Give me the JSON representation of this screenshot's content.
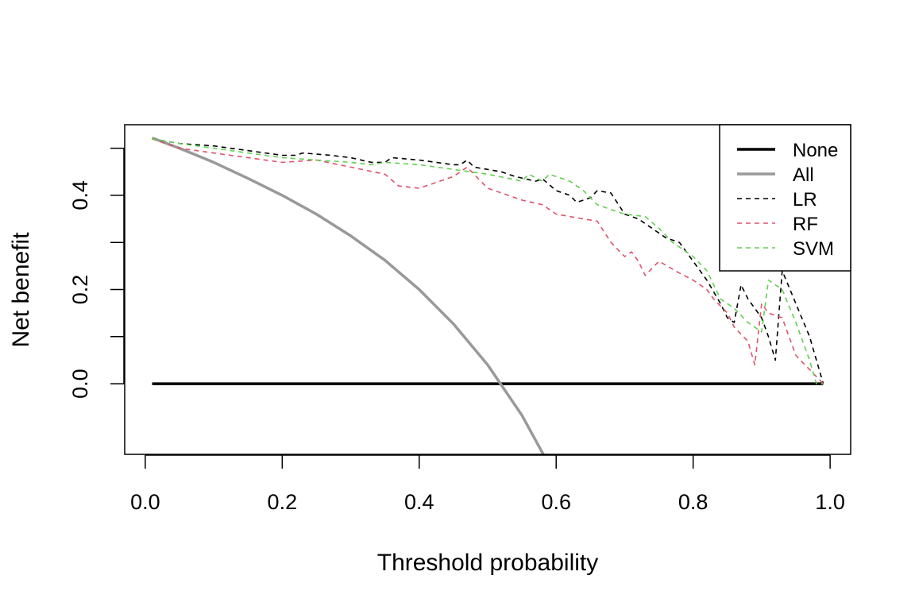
{
  "chart_data": {
    "type": "line",
    "title": "",
    "xlabel": "Threshold probability",
    "ylabel": "Net benefit",
    "xlim": [
      -0.03,
      1.03
    ],
    "ylim": [
      -0.15,
      0.55
    ],
    "x_ticks": [
      0.0,
      0.2,
      0.4,
      0.6,
      0.8,
      1.0
    ],
    "x_tick_labels": [
      "0.0",
      "0.2",
      "0.4",
      "0.6",
      "0.8",
      "1.0"
    ],
    "y_ticks": [
      0.0,
      0.1,
      0.2,
      0.3,
      0.4,
      0.5
    ],
    "y_tick_labels": [
      "0.0",
      "",
      "0.2",
      "",
      "0.4",
      ""
    ],
    "grid": false,
    "legend_position": "top-right",
    "series": [
      {
        "name": "None",
        "color": "#000000",
        "style": "solid",
        "points": [
          [
            0.01,
            0.0
          ],
          [
            0.99,
            0.0
          ]
        ]
      },
      {
        "name": "All",
        "color": "#999999",
        "style": "solid",
        "points": [
          [
            0.01,
            0.522
          ],
          [
            0.05,
            0.5
          ],
          [
            0.1,
            0.47
          ],
          [
            0.15,
            0.436
          ],
          [
            0.2,
            0.4
          ],
          [
            0.25,
            0.36
          ],
          [
            0.3,
            0.314
          ],
          [
            0.35,
            0.262
          ],
          [
            0.4,
            0.2
          ],
          [
            0.45,
            0.127
          ],
          [
            0.5,
            0.04
          ],
          [
            0.55,
            -0.067
          ],
          [
            0.6,
            -0.2
          ],
          [
            0.605,
            -0.215
          ]
        ]
      },
      {
        "name": "LR",
        "color": "#000000",
        "style": "dashed",
        "points": [
          [
            0.01,
            0.52
          ],
          [
            0.05,
            0.51
          ],
          [
            0.1,
            0.505
          ],
          [
            0.15,
            0.495
          ],
          [
            0.2,
            0.485
          ],
          [
            0.22,
            0.485
          ],
          [
            0.23,
            0.49
          ],
          [
            0.27,
            0.485
          ],
          [
            0.3,
            0.48
          ],
          [
            0.33,
            0.47
          ],
          [
            0.35,
            0.47
          ],
          [
            0.36,
            0.48
          ],
          [
            0.4,
            0.475
          ],
          [
            0.45,
            0.465
          ],
          [
            0.46,
            0.465
          ],
          [
            0.47,
            0.475
          ],
          [
            0.48,
            0.46
          ],
          [
            0.52,
            0.45
          ],
          [
            0.54,
            0.44
          ],
          [
            0.57,
            0.43
          ],
          [
            0.58,
            0.435
          ],
          [
            0.6,
            0.41
          ],
          [
            0.62,
            0.4
          ],
          [
            0.63,
            0.385
          ],
          [
            0.65,
            0.395
          ],
          [
            0.66,
            0.41
          ],
          [
            0.68,
            0.405
          ],
          [
            0.7,
            0.36
          ],
          [
            0.72,
            0.35
          ],
          [
            0.74,
            0.33
          ],
          [
            0.76,
            0.31
          ],
          [
            0.78,
            0.3
          ],
          [
            0.8,
            0.26
          ],
          [
            0.82,
            0.22
          ],
          [
            0.84,
            0.17
          ],
          [
            0.85,
            0.14
          ],
          [
            0.86,
            0.13
          ],
          [
            0.87,
            0.21
          ],
          [
            0.88,
            0.18
          ],
          [
            0.9,
            0.14
          ],
          [
            0.91,
            0.1
          ],
          [
            0.92,
            0.05
          ],
          [
            0.93,
            0.24
          ],
          [
            0.95,
            0.17
          ],
          [
            0.97,
            0.1
          ],
          [
            0.99,
            0.0
          ]
        ]
      },
      {
        "name": "RF",
        "color": "#DF536B",
        "style": "dashed",
        "points": [
          [
            0.01,
            0.52
          ],
          [
            0.05,
            0.5
          ],
          [
            0.1,
            0.49
          ],
          [
            0.15,
            0.48
          ],
          [
            0.2,
            0.47
          ],
          [
            0.25,
            0.475
          ],
          [
            0.3,
            0.46
          ],
          [
            0.35,
            0.445
          ],
          [
            0.37,
            0.42
          ],
          [
            0.4,
            0.415
          ],
          [
            0.45,
            0.44
          ],
          [
            0.46,
            0.45
          ],
          [
            0.47,
            0.46
          ],
          [
            0.5,
            0.415
          ],
          [
            0.53,
            0.4
          ],
          [
            0.55,
            0.39
          ],
          [
            0.58,
            0.38
          ],
          [
            0.6,
            0.36
          ],
          [
            0.64,
            0.35
          ],
          [
            0.66,
            0.345
          ],
          [
            0.68,
            0.3
          ],
          [
            0.7,
            0.27
          ],
          [
            0.71,
            0.28
          ],
          [
            0.72,
            0.26
          ],
          [
            0.73,
            0.23
          ],
          [
            0.75,
            0.26
          ],
          [
            0.78,
            0.235
          ],
          [
            0.8,
            0.22
          ],
          [
            0.82,
            0.2
          ],
          [
            0.83,
            0.18
          ],
          [
            0.85,
            0.15
          ],
          [
            0.86,
            0.12
          ],
          [
            0.88,
            0.09
          ],
          [
            0.89,
            0.04
          ],
          [
            0.9,
            0.17
          ],
          [
            0.91,
            0.15
          ],
          [
            0.93,
            0.14
          ],
          [
            0.95,
            0.06
          ],
          [
            0.97,
            0.03
          ],
          [
            0.99,
            0.0
          ]
        ]
      },
      {
        "name": "SVM",
        "color": "#61D04F",
        "style": "dashed",
        "points": [
          [
            0.01,
            0.52
          ],
          [
            0.05,
            0.51
          ],
          [
            0.1,
            0.5
          ],
          [
            0.15,
            0.49
          ],
          [
            0.2,
            0.48
          ],
          [
            0.25,
            0.475
          ],
          [
            0.3,
            0.47
          ],
          [
            0.33,
            0.465
          ],
          [
            0.35,
            0.47
          ],
          [
            0.4,
            0.465
          ],
          [
            0.45,
            0.455
          ],
          [
            0.5,
            0.445
          ],
          [
            0.55,
            0.43
          ],
          [
            0.56,
            0.445
          ],
          [
            0.58,
            0.43
          ],
          [
            0.59,
            0.445
          ],
          [
            0.6,
            0.44
          ],
          [
            0.62,
            0.43
          ],
          [
            0.64,
            0.41
          ],
          [
            0.66,
            0.38
          ],
          [
            0.68,
            0.37
          ],
          [
            0.7,
            0.36
          ],
          [
            0.73,
            0.355
          ],
          [
            0.75,
            0.33
          ],
          [
            0.77,
            0.3
          ],
          [
            0.8,
            0.27
          ],
          [
            0.82,
            0.24
          ],
          [
            0.84,
            0.18
          ],
          [
            0.86,
            0.16
          ],
          [
            0.88,
            0.13
          ],
          [
            0.9,
            0.11
          ],
          [
            0.91,
            0.22
          ],
          [
            0.93,
            0.2
          ],
          [
            0.95,
            0.13
          ],
          [
            0.97,
            0.05
          ],
          [
            0.98,
            0.0
          ],
          [
            0.99,
            0.0
          ]
        ]
      }
    ]
  }
}
